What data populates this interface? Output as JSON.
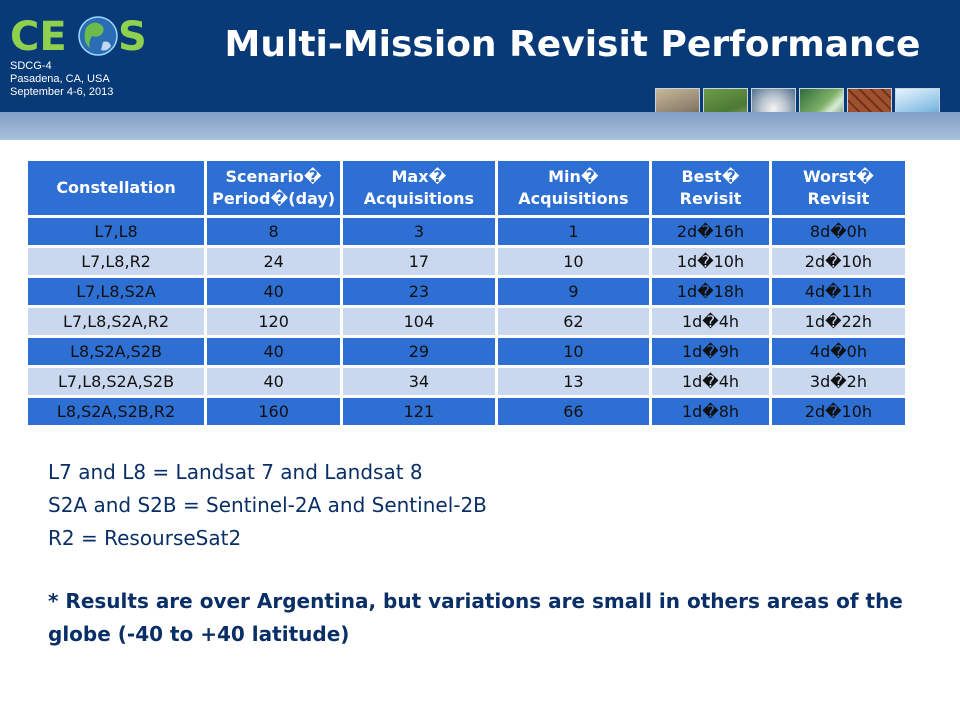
{
  "header": {
    "logo_text": "CEOS",
    "meta_lines": [
      "SDCG-4",
      "Pasadena, CA, USA",
      "September 4-6, 2013"
    ],
    "title": "Multi-Mission Revisit Performance",
    "colors": {
      "header_bg": "#083a78",
      "band": "#a9c0dc"
    }
  },
  "table": {
    "columns": [
      [
        "",
        "Constellation"
      ],
      [
        "Scenario�",
        "Period�(day)"
      ],
      [
        "Max�",
        "Acquisitions"
      ],
      [
        "Min�",
        "Acquisitions"
      ],
      [
        "Best�",
        "Revisit"
      ],
      [
        "Worst�",
        "Revisit"
      ]
    ],
    "rows": [
      [
        "L7,L8",
        "8",
        "3",
        "1",
        "2d�16h",
        "8d�0h"
      ],
      [
        "L7,L8,R2",
        "24",
        "17",
        "10",
        "1d�10h",
        "2d�10h"
      ],
      [
        "L7,L8,S2A",
        "40",
        "23",
        "9",
        "1d�18h",
        "4d�11h"
      ],
      [
        "L7,L8,S2A,R2",
        "120",
        "104",
        "62",
        "1d�4h",
        "1d�22h"
      ],
      [
        "L8,S2A,S2B",
        "40",
        "29",
        "10",
        "1d�9h",
        "4d�0h"
      ],
      [
        "L7,L8,S2A,S2B",
        "40",
        "34",
        "13",
        "1d�4h",
        "3d�2h"
      ],
      [
        "L8,S2A,S2B,R2",
        "160",
        "121",
        "66",
        "1d�8h",
        "2d�10h"
      ]
    ],
    "colors": {
      "header": "#2e6fd3",
      "row_dark": "#2e6fd3",
      "row_light": "#c9d8ee"
    }
  },
  "notes": {
    "lines": [
      "L7 and L8 = Landsat 7 and Landsat 8",
      "S2A and S2B = Sentinel-2A and Sentinel-2B",
      "R2 = ResourseSat2"
    ],
    "footnote": "* Results are over Argentina, but variations are small in others areas of the globe (-40 to +40 latitude)"
  }
}
